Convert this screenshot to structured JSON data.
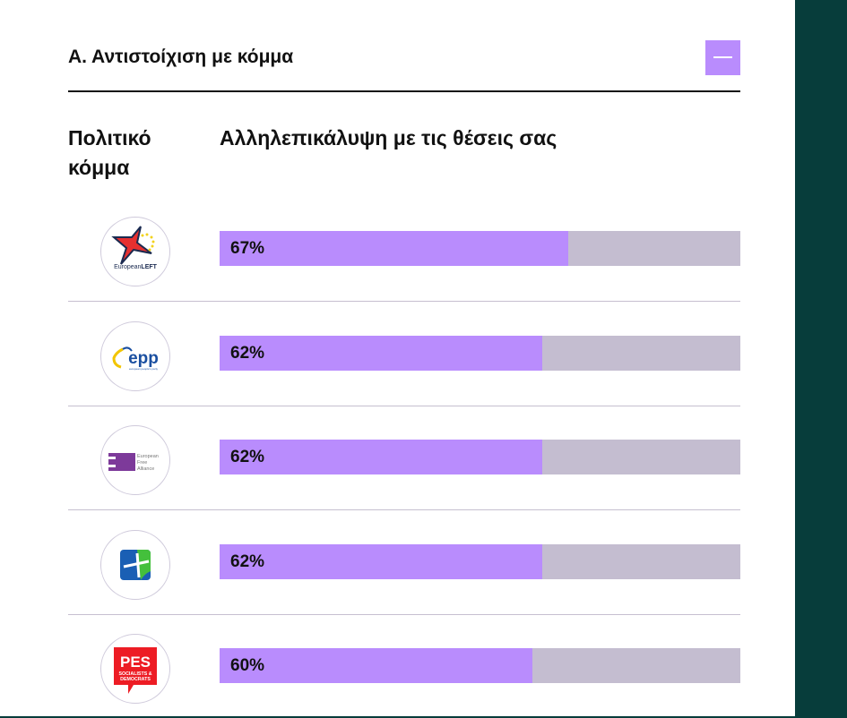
{
  "section": {
    "title": "Α. Αντιστοίχιση με κόμμα",
    "collapse_icon": "minus-icon"
  },
  "columns": {
    "party": "Πολιτικό κόμμα",
    "overlap": "Αλληλεπικάλυψη με τις θέσεις σας"
  },
  "colors": {
    "accent": "#b98cfd",
    "track": "#c4bdd0",
    "background": "#073d3b"
  },
  "parties": [
    {
      "logo": "European LEFT",
      "percent": 67,
      "label": "67%"
    },
    {
      "logo": "epp european people's party",
      "percent": 62,
      "label": "62%"
    },
    {
      "logo": "European Free Alliance",
      "percent": 62,
      "label": "62%"
    },
    {
      "logo": "blue-green cross logo",
      "percent": 62,
      "label": "62%"
    },
    {
      "logo": "PES SOCIALISTS & DEMOCRATS",
      "percent": 60,
      "label": "60%"
    }
  ]
}
